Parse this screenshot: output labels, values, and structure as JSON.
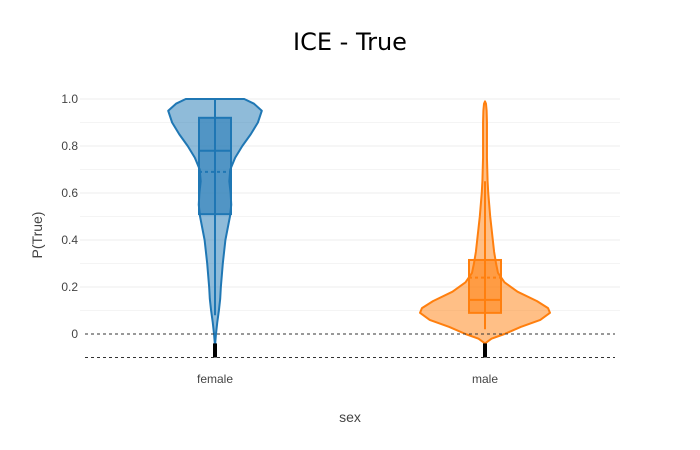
{
  "chart_data": {
    "type": "violin",
    "title": "ICE - True",
    "xlabel": "sex",
    "ylabel": "P(True)",
    "categories": [
      "female",
      "male"
    ],
    "ylim": [
      -0.1,
      1.0
    ],
    "yticks": [
      0,
      0.2,
      0.4,
      0.6,
      0.8,
      1.0
    ],
    "ytick_labels": [
      "0",
      "0.2",
      "0.4",
      "0.6",
      "0.8",
      "1.0"
    ],
    "grid": true,
    "reference_lines": [
      0,
      -0.1
    ],
    "series": [
      {
        "category": "female",
        "color": "#1f77b4",
        "box": {
          "q1": 0.51,
          "median": 0.78,
          "q3": 0.92,
          "mean": 0.69,
          "min": 0.08,
          "max": 1.0
        },
        "density_profile": [
          {
            "y": -0.05,
            "w": 0.0
          },
          {
            "y": 0.0,
            "w": 0.015
          },
          {
            "y": 0.05,
            "w": 0.035
          },
          {
            "y": 0.1,
            "w": 0.06
          },
          {
            "y": 0.15,
            "w": 0.08
          },
          {
            "y": 0.2,
            "w": 0.09
          },
          {
            "y": 0.3,
            "w": 0.12
          },
          {
            "y": 0.4,
            "w": 0.16
          },
          {
            "y": 0.5,
            "w": 0.23
          },
          {
            "y": 0.55,
            "w": 0.25
          },
          {
            "y": 0.6,
            "w": 0.24
          },
          {
            "y": 0.65,
            "w": 0.22
          },
          {
            "y": 0.7,
            "w": 0.235
          },
          {
            "y": 0.75,
            "w": 0.31
          },
          {
            "y": 0.8,
            "w": 0.42
          },
          {
            "y": 0.85,
            "w": 0.55
          },
          {
            "y": 0.9,
            "w": 0.66
          },
          {
            "y": 0.95,
            "w": 0.72
          },
          {
            "y": 0.98,
            "w": 0.6
          },
          {
            "y": 1.0,
            "w": 0.45
          }
        ]
      },
      {
        "category": "male",
        "color": "#ff7f0e",
        "box": {
          "q1": 0.09,
          "median": 0.145,
          "q3": 0.315,
          "mean": 0.24,
          "min": 0.02,
          "max": 0.65
        },
        "density_profile": [
          {
            "y": -0.04,
            "w": 0.0
          },
          {
            "y": -0.02,
            "w": 0.1
          },
          {
            "y": 0.0,
            "w": 0.3
          },
          {
            "y": 0.03,
            "w": 0.55
          },
          {
            "y": 0.06,
            "w": 0.85
          },
          {
            "y": 0.09,
            "w": 1.0
          },
          {
            "y": 0.11,
            "w": 0.97
          },
          {
            "y": 0.14,
            "w": 0.8
          },
          {
            "y": 0.18,
            "w": 0.5
          },
          {
            "y": 0.22,
            "w": 0.3
          },
          {
            "y": 0.26,
            "w": 0.2
          },
          {
            "y": 0.3,
            "w": 0.17
          },
          {
            "y": 0.35,
            "w": 0.14
          },
          {
            "y": 0.4,
            "w": 0.12
          },
          {
            "y": 0.45,
            "w": 0.1
          },
          {
            "y": 0.5,
            "w": 0.08
          },
          {
            "y": 0.55,
            "w": 0.065
          },
          {
            "y": 0.6,
            "w": 0.05
          },
          {
            "y": 0.65,
            "w": 0.04
          },
          {
            "y": 0.7,
            "w": 0.035
          },
          {
            "y": 0.75,
            "w": 0.03
          },
          {
            "y": 0.8,
            "w": 0.03
          },
          {
            "y": 0.85,
            "w": 0.03
          },
          {
            "y": 0.9,
            "w": 0.03
          },
          {
            "y": 0.95,
            "w": 0.025
          },
          {
            "y": 0.98,
            "w": 0.015
          },
          {
            "y": 0.99,
            "w": 0.0
          }
        ]
      }
    ]
  }
}
